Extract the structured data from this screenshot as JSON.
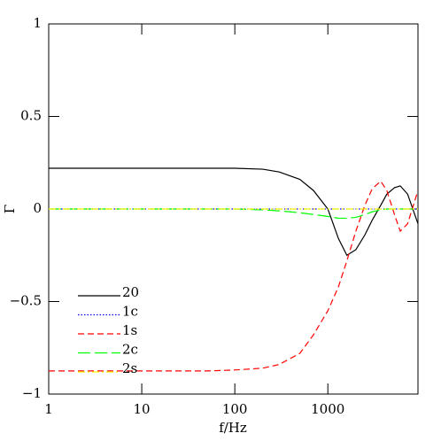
{
  "chart_data": {
    "type": "line",
    "xlabel": "f/Hz",
    "ylabel": "Γ",
    "xscale": "log",
    "xlim": [
      1,
      9300
    ],
    "xticks": [
      1,
      10,
      100,
      1000
    ],
    "ylim": [
      -1,
      1
    ],
    "yticks": [
      {
        "value": -1,
        "label": "−1"
      },
      {
        "value": -0.5,
        "label": "−0.5"
      },
      0,
      0.5,
      1
    ],
    "legend": "lower left",
    "x": [
      1,
      2,
      5,
      10,
      20,
      50,
      100,
      200,
      300,
      500,
      700,
      1000,
      1300,
      1600,
      2000,
      2500,
      3000,
      3700,
      4300,
      5200,
      6000,
      7200,
      9300
    ],
    "series": [
      {
        "name": "20",
        "color": "#000000",
        "style": "solid",
        "values": [
          0.22,
          0.22,
          0.22,
          0.22,
          0.22,
          0.22,
          0.22,
          0.215,
          0.2,
          0.16,
          0.1,
          0.0,
          -0.16,
          -0.25,
          -0.22,
          -0.14,
          -0.06,
          0.02,
          0.08,
          0.115,
          0.125,
          0.08,
          -0.08
        ]
      },
      {
        "name": "1c",
        "color": "#0000ff",
        "style": "dotted",
        "values": [
          0,
          0,
          0,
          0,
          0,
          0,
          0,
          0,
          0,
          0,
          0,
          0,
          0,
          0,
          0,
          0,
          0,
          0,
          0,
          0,
          0,
          0,
          0
        ]
      },
      {
        "name": "1s",
        "color": "#ff0000",
        "style": "dashed",
        "values": [
          -0.875,
          -0.875,
          -0.875,
          -0.875,
          -0.875,
          -0.875,
          -0.87,
          -0.86,
          -0.84,
          -0.78,
          -0.68,
          -0.55,
          -0.42,
          -0.28,
          -0.12,
          0.02,
          0.11,
          0.15,
          0.1,
          -0.03,
          -0.12,
          -0.08,
          0.1
        ]
      },
      {
        "name": "2c",
        "color": "#00ff00",
        "style": "long-dashed",
        "values": [
          0,
          0,
          0,
          0,
          0,
          0,
          0,
          -0.005,
          -0.01,
          -0.02,
          -0.03,
          -0.04,
          -0.05,
          -0.05,
          -0.045,
          -0.03,
          -0.015,
          -0.005,
          0,
          0,
          0,
          0,
          0
        ]
      },
      {
        "name": "2s",
        "color": "#ffff00",
        "style": "dot-dashed",
        "values": [
          0,
          0,
          0,
          0,
          0,
          0,
          0,
          0,
          0,
          0,
          0,
          0,
          0,
          0,
          0,
          0,
          0,
          0,
          0,
          0,
          0,
          0,
          0
        ]
      }
    ]
  }
}
